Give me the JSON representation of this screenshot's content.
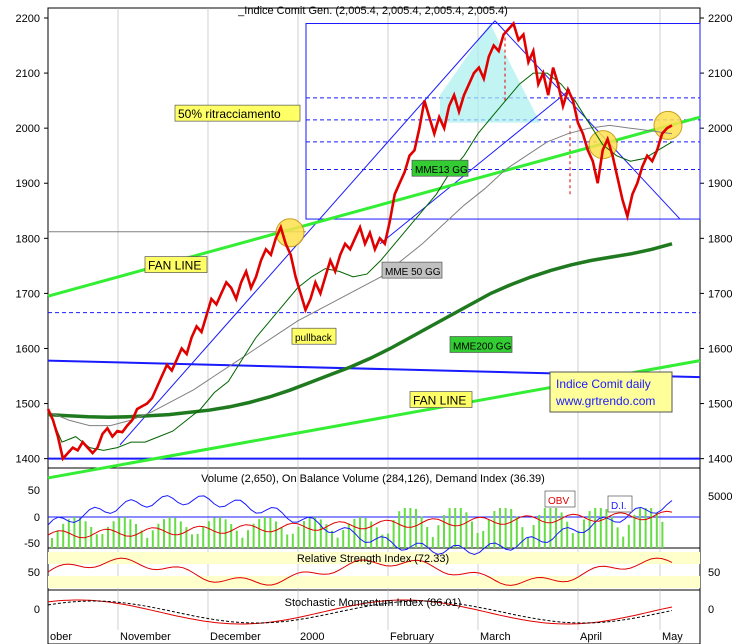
{
  "chart_data": {
    "type": "line",
    "title": "_Indice Comit Gen. (2,005.4, 2,005.4, 2,005.4, 2,005.4)",
    "x_labels": [
      "ober",
      "November",
      "December",
      "2000",
      "February",
      "March",
      "April",
      "May"
    ],
    "y_ticks": [
      1400,
      1500,
      1600,
      1700,
      1800,
      1900,
      2000,
      2100,
      2200
    ],
    "ylim": [
      1370,
      2205
    ],
    "series": [
      {
        "name": "price",
        "color": "#e00000",
        "values": [
          1490,
          1470,
          1440,
          1400,
          1410,
          1420,
          1415,
          1430,
          1420,
          1410,
          1420,
          1445,
          1455,
          1440,
          1450,
          1448,
          1460,
          1470,
          1490,
          1495,
          1500,
          1510,
          1530,
          1550,
          1570,
          1560,
          1580,
          1600,
          1590,
          1620,
          1640,
          1630,
          1660,
          1690,
          1680,
          1700,
          1720,
          1710,
          1690,
          1720,
          1740,
          1710,
          1730,
          1760,
          1780,
          1770,
          1800,
          1820,
          1790,
          1770,
          1730,
          1700,
          1670,
          1690,
          1720,
          1700,
          1730,
          1760,
          1740,
          1770,
          1790,
          1780,
          1800,
          1820,
          1790,
          1810,
          1780,
          1800,
          1790,
          1830,
          1880,
          1900,
          1920,
          1950,
          1960,
          2000,
          2050,
          2020,
          1990,
          2020,
          2000,
          2040,
          2060,
          2030,
          2060,
          2080,
          2100,
          2110,
          2090,
          2130,
          2150,
          2140,
          2170,
          2180,
          2190,
          2160,
          2170,
          2120,
          2140,
          2080,
          2100,
          2060,
          2110,
          2080,
          2040,
          2070,
          2050,
          2010,
          1990,
          1960,
          1940,
          1900,
          1960,
          1980,
          1950,
          1910,
          1870,
          1840,
          1880,
          1900,
          1930,
          1950,
          1940,
          1960,
          1990,
          2000,
          2005
        ]
      },
      {
        "name": "MME13 GG",
        "color": "#006400",
        "values": [
          1490,
          1430,
          1440,
          1420,
          1415,
          1420,
          1430,
          1430,
          1440,
          1450,
          1470,
          1490,
          1520,
          1540,
          1580,
          1620,
          1650,
          1680,
          1710,
          1730,
          1745,
          1740,
          1730,
          1735,
          1760,
          1790,
          1820,
          1850,
          1880,
          1920,
          1950,
          1990,
          2020,
          2050,
          2080,
          2100,
          2100,
          2080,
          2050,
          2010,
          1970,
          1950,
          1940,
          1945,
          1960,
          1975
        ]
      },
      {
        "name": "MME  50 GG",
        "color": "#808080",
        "values": [
          1485,
          1470,
          1460,
          1460,
          1470,
          1485,
          1505,
          1525,
          1550,
          1575,
          1600,
          1625,
          1650,
          1670,
          1690,
          1710,
          1730,
          1760,
          1790,
          1825,
          1860,
          1890,
          1925,
          1950,
          1975,
          1990,
          2000,
          2005,
          2000,
          1995,
          1990
        ]
      },
      {
        "name": "MME200 GG",
        "color": "#1f7a1f",
        "values": [
          1480,
          1478,
          1476,
          1475,
          1476,
          1478,
          1480,
          1484,
          1488,
          1494,
          1502,
          1512,
          1524,
          1538,
          1552,
          1566,
          1582,
          1600,
          1620,
          1640,
          1660,
          1680,
          1700,
          1716,
          1730,
          1742,
          1752,
          1760,
          1766,
          1772,
          1780,
          1790
        ]
      }
    ],
    "annotations": [
      "50% ritracciamento",
      "FAN LINE",
      "FAN LINE",
      "MME13 GG",
      "MME  50 GG",
      "pullback",
      "MME200 GG",
      "Indice Comit daily",
      "www.grtrendo.com"
    ],
    "panels": [
      {
        "title": "Volume (2,650), On Balance Volume (284,126), Demand Index (36.39)",
        "y_ticks": [
          50,
          0,
          -50
        ],
        "right_ticks": [
          5000
        ],
        "labels": [
          "OBV",
          "D.I."
        ]
      },
      {
        "title": "Relative Strength Index (72.33)",
        "y_ticks": [
          50
        ],
        "right_ticks": [
          50
        ]
      },
      {
        "title": "Stochastic Momentum Index (86.01)",
        "y_ticks": [
          0
        ],
        "right_ticks": [
          0
        ]
      }
    ],
    "grid": true
  }
}
